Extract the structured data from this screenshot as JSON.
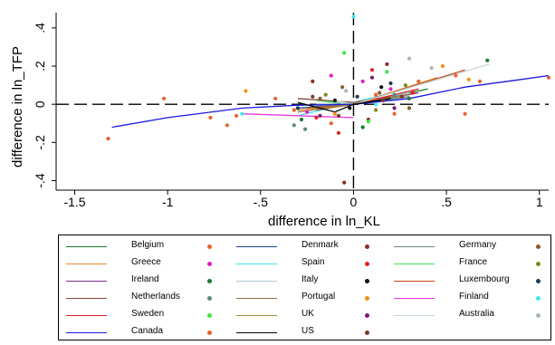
{
  "chart_data": {
    "type": "scatter",
    "title": "",
    "xlabel": "difference in ln_KL",
    "ylabel": "difference in ln_TFP",
    "xlim": [
      -1.6,
      1.05
    ],
    "ylim": [
      -0.45,
      0.48
    ],
    "xticks": [
      -1.5,
      -1,
      -0.5,
      0,
      0.5,
      1
    ],
    "xtick_labels": [
      "-1.5",
      "-1",
      "-.5",
      "0",
      ".5",
      "1"
    ],
    "yticks": [
      -0.4,
      -0.2,
      0,
      0.2,
      0.4
    ],
    "ytick_labels": [
      "-.4",
      "-.2",
      "0",
      ".2",
      ".4"
    ],
    "reference_lines": {
      "x": 0,
      "y": 0,
      "style": "dashed"
    },
    "grid": false,
    "legend_position": "bottom",
    "series": [
      {
        "name": "Belgium",
        "line_color": "#1a7a2e",
        "dot_color": "#e8622b",
        "line": [
          [
            -0.2,
            0.0
          ],
          [
            0.0,
            0.01
          ],
          [
            0.2,
            0.04
          ],
          [
            0.4,
            0.08
          ]
        ],
        "points": [
          [
            -1.32,
            -0.18
          ],
          [
            -1.02,
            0.03
          ],
          [
            -0.63,
            -0.06
          ],
          [
            -0.32,
            -0.03
          ],
          [
            0.12,
            0.05
          ],
          [
            0.35,
            0.12
          ],
          [
            0.55,
            0.15
          ],
          [
            1.05,
            0.14
          ],
          [
            -0.12,
            -0.1
          ],
          [
            0.22,
            -0.05
          ]
        ]
      },
      {
        "name": "Denmark",
        "line_color": "#1b3c8c",
        "dot_color": "#8b2c2c",
        "line": [
          [
            -0.3,
            -0.02
          ],
          [
            0.0,
            0.0
          ],
          [
            0.3,
            0.05
          ]
        ],
        "points": [
          [
            -0.05,
            -0.41
          ],
          [
            0.18,
            0.21
          ],
          [
            -0.22,
            0.12
          ],
          [
            0.08,
            -0.08
          ],
          [
            0.26,
            0.04
          ]
        ]
      },
      {
        "name": "Germany",
        "line_color": "#6b8a84",
        "dot_color": "#8b5a2b",
        "line": [
          [
            -0.2,
            -0.01
          ],
          [
            0.0,
            0.0
          ],
          [
            0.3,
            0.04
          ]
        ],
        "points": [
          [
            -0.18,
            0.03
          ],
          [
            0.14,
            0.06
          ],
          [
            0.3,
            -0.02
          ],
          [
            -0.06,
            0.09
          ]
        ]
      },
      {
        "name": "Greece",
        "line_color": "#f08a2c",
        "dot_color": "#e020c8",
        "line": [
          [
            -0.3,
            -0.03
          ],
          [
            0.0,
            0.0
          ],
          [
            0.45,
            0.14
          ]
        ],
        "points": [
          [
            -0.25,
            -0.04
          ],
          [
            0.05,
            0.12
          ],
          [
            0.2,
            0.08
          ],
          [
            -0.12,
            0.15
          ]
        ]
      },
      {
        "name": "Spain",
        "line_color": "#3de0f0",
        "dot_color": "#e02020",
        "line": [
          [
            -0.3,
            -0.06
          ],
          [
            0.0,
            0.01
          ],
          [
            0.25,
            0.07
          ]
        ],
        "points": [
          [
            -0.2,
            -0.07
          ],
          [
            0.1,
            0.18
          ],
          [
            0.32,
            0.06
          ],
          [
            -0.08,
            -0.15
          ]
        ]
      },
      {
        "name": "France",
        "line_color": "#3ce85a",
        "dot_color": "#7e8a2a",
        "line": [
          [
            -0.2,
            0.02
          ],
          [
            0.0,
            0.0
          ],
          [
            0.2,
            0.03
          ]
        ],
        "points": [
          [
            -0.15,
            0.05
          ],
          [
            0.12,
            -0.03
          ],
          [
            0.28,
            0.1
          ]
        ]
      },
      {
        "name": "Ireland",
        "line_color": "#7a2c8c",
        "dot_color": "#1a7a2e",
        "line": [
          [
            -0.3,
            -0.04
          ],
          [
            0.0,
            0.0
          ],
          [
            0.35,
            0.06
          ]
        ],
        "points": [
          [
            -0.28,
            -0.08
          ],
          [
            0.05,
            -0.12
          ],
          [
            0.3,
            0.03
          ],
          [
            0.72,
            0.23
          ]
        ]
      },
      {
        "name": "Italy",
        "line_color": "#a8ccd8",
        "dot_color": "#101010",
        "line": [
          [
            -0.2,
            0.0
          ],
          [
            0.0,
            0.01
          ],
          [
            0.3,
            0.06
          ]
        ],
        "points": [
          [
            -0.1,
            0.02
          ],
          [
            0.15,
            0.09
          ],
          [
            -0.02,
            -0.02
          ]
        ]
      },
      {
        "name": "Luxembourg",
        "line_color": "#c84a1a",
        "dot_color": "#1b3c5a",
        "line": [
          [
            -0.2,
            -0.02
          ],
          [
            0.0,
            0.0
          ],
          [
            0.6,
            0.18
          ]
        ],
        "points": [
          [
            -0.3,
            -0.02
          ],
          [
            0.2,
            0.11
          ],
          [
            0.02,
            0.04
          ]
        ]
      },
      {
        "name": "Netherlands",
        "line_color": "#8b4a3c",
        "dot_color": "#5a8a7a",
        "line": [
          [
            -0.3,
            0.03
          ],
          [
            0.0,
            0.01
          ],
          [
            0.2,
            0.04
          ]
        ],
        "points": [
          [
            -0.32,
            -0.11
          ],
          [
            -0.26,
            -0.13
          ],
          [
            0.22,
            0.05
          ]
        ]
      },
      {
        "name": "Portugal",
        "line_color": "#9b6a3a",
        "dot_color": "#f0901a",
        "line": [
          [
            -0.25,
            -0.02
          ],
          [
            0.0,
            0.0
          ],
          [
            0.55,
            0.16
          ]
        ],
        "points": [
          [
            -0.58,
            0.07
          ],
          [
            0.48,
            0.2
          ],
          [
            0.62,
            0.13
          ],
          [
            -0.1,
            -0.05
          ]
        ]
      },
      {
        "name": "Finland",
        "line_color": "#e838d8",
        "dot_color": "#3ce8e8",
        "line": [
          [
            -0.6,
            -0.05
          ],
          [
            -0.3,
            -0.06
          ],
          [
            0.0,
            -0.07
          ]
        ],
        "points": [
          [
            -0.6,
            -0.05
          ],
          [
            0.0,
            0.46
          ],
          [
            0.12,
            0.0
          ]
        ]
      },
      {
        "name": "Sweden",
        "line_color": "#e02020",
        "dot_color": "#3ce83c",
        "line": [
          [
            -0.2,
            -0.03
          ],
          [
            0.0,
            0.0
          ],
          [
            0.35,
            0.08
          ]
        ],
        "points": [
          [
            -0.05,
            0.27
          ],
          [
            0.18,
            0.17
          ],
          [
            0.08,
            -0.09
          ]
        ]
      },
      {
        "name": "UK",
        "line_color": "#a08a3a",
        "dot_color": "#7a1a7a",
        "line": [
          [
            -0.3,
            -0.04
          ],
          [
            0.0,
            0.0
          ],
          [
            0.3,
            0.05
          ]
        ],
        "points": [
          [
            -0.18,
            -0.06
          ],
          [
            0.1,
            0.14
          ],
          [
            0.22,
            -0.02
          ]
        ]
      },
      {
        "name": "Australia",
        "line_color": "#c8d8d8",
        "dot_color": "#a8b8b8",
        "line": [
          [
            -0.1,
            0.02
          ],
          [
            0.0,
            0.0
          ],
          [
            0.73,
            0.21
          ]
        ],
        "points": [
          [
            0.3,
            0.24
          ],
          [
            0.42,
            0.19
          ],
          [
            -0.04,
            0.07
          ]
        ]
      },
      {
        "name": "Canada",
        "line_color": "#1a1ae0",
        "dot_color": "#e8622b",
        "line": [
          [
            -1.3,
            -0.12
          ],
          [
            -1.0,
            -0.07
          ],
          [
            -0.6,
            -0.02
          ],
          [
            -0.3,
            -0.005
          ],
          [
            0.0,
            0.0
          ],
          [
            0.3,
            0.03
          ],
          [
            0.6,
            0.09
          ],
          [
            0.9,
            0.13
          ],
          [
            1.05,
            0.15
          ]
        ],
        "points": [
          [
            -0.77,
            -0.07
          ],
          [
            -0.68,
            -0.11
          ],
          [
            -0.42,
            0.03
          ],
          [
            0.68,
            0.12
          ],
          [
            0.6,
            -0.05
          ]
        ]
      },
      {
        "name": "US",
        "line_color": "#000000",
        "dot_color": "#7a3a2a",
        "line": [
          [
            -0.3,
            0.01
          ],
          [
            -0.1,
            -0.04
          ],
          [
            0.0,
            0.0
          ],
          [
            0.2,
            0.03
          ]
        ],
        "points": [
          [
            -0.08,
            -0.06
          ],
          [
            0.16,
            0.02
          ],
          [
            -0.22,
            0.04
          ]
        ]
      }
    ]
  }
}
